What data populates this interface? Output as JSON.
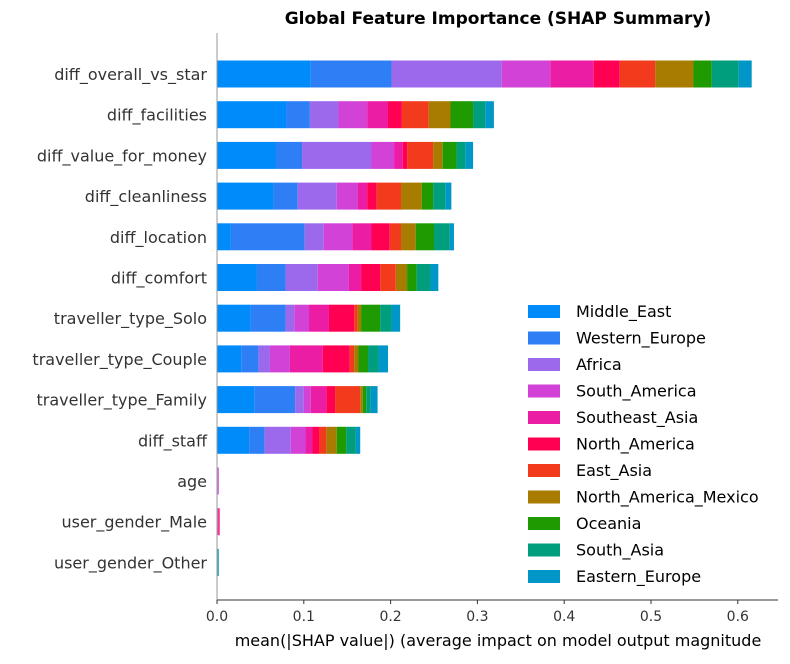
{
  "chart_data": {
    "type": "bar",
    "orientation": "horizontal",
    "stacked": true,
    "title": "Global Feature Importance (SHAP Summary)",
    "xlabel": "mean(|SHAP value|) (average impact on model output magnitude",
    "ylabel": "",
    "xlim": [
      0,
      0.645
    ],
    "xticks": [
      0.0,
      0.1,
      0.2,
      0.3,
      0.4,
      0.5,
      0.6
    ],
    "xtick_labels": [
      "0.0",
      "0.1",
      "0.2",
      "0.3",
      "0.4",
      "0.5",
      "0.6"
    ],
    "grid": false,
    "legend_position": "lower-right",
    "categories": [
      "diff_overall_vs_star",
      "diff_facilities",
      "diff_value_for_money",
      "diff_cleanliness",
      "diff_location",
      "diff_comfort",
      "traveller_type_Solo",
      "traveller_type_Couple",
      "traveller_type_Family",
      "diff_staff",
      "age",
      "user_gender_Male",
      "user_gender_Other"
    ],
    "series": [
      {
        "name": "Middle_East",
        "color": "#008bfb",
        "values": [
          0.108,
          0.08,
          0.068,
          0.065,
          0.016,
          0.046,
          0.039,
          0.028,
          0.043,
          0.037,
          0.0,
          0.0,
          0.0
        ]
      },
      {
        "name": "Western_Europe",
        "color": "#2e7ff5",
        "values": [
          0.093,
          0.027,
          0.03,
          0.028,
          0.085,
          0.033,
          0.04,
          0.02,
          0.047,
          0.018,
          0.0,
          0.0,
          0.0
        ]
      },
      {
        "name": "Africa",
        "color": "#9c68ec",
        "values": [
          0.127,
          0.033,
          0.08,
          0.045,
          0.022,
          0.037,
          0.01,
          0.013,
          0.01,
          0.03,
          0.001,
          0.0,
          0.0
        ]
      },
      {
        "name": "South_America",
        "color": "#d342d7",
        "values": [
          0.056,
          0.033,
          0.026,
          0.024,
          0.033,
          0.036,
          0.017,
          0.023,
          0.008,
          0.017,
          0.001,
          0.001,
          0.0
        ]
      },
      {
        "name": "Southeast_Asia",
        "color": "#ec1da5",
        "values": [
          0.05,
          0.024,
          0.01,
          0.011,
          0.022,
          0.014,
          0.023,
          0.038,
          0.018,
          0.008,
          0.0,
          0.001,
          0.0
        ]
      },
      {
        "name": "North_America",
        "color": "#ff0052",
        "values": [
          0.03,
          0.016,
          0.005,
          0.011,
          0.021,
          0.022,
          0.029,
          0.031,
          0.01,
          0.008,
          0.0,
          0.001,
          0.0
        ]
      },
      {
        "name": "East_Asia",
        "color": "#f23b1d",
        "values": [
          0.041,
          0.031,
          0.03,
          0.028,
          0.013,
          0.018,
          0.004,
          0.005,
          0.029,
          0.008,
          0.0,
          0.0,
          0.0
        ]
      },
      {
        "name": "North_America_Mexico",
        "color": "#a87c00",
        "values": [
          0.044,
          0.025,
          0.011,
          0.024,
          0.017,
          0.013,
          0.004,
          0.005,
          0.003,
          0.012,
          0.0,
          0.0,
          0.0
        ]
      },
      {
        "name": "Oceania",
        "color": "#1f9a00",
        "values": [
          0.021,
          0.026,
          0.016,
          0.013,
          0.021,
          0.011,
          0.022,
          0.011,
          0.004,
          0.011,
          0.0,
          0.0,
          0.0
        ]
      },
      {
        "name": "South_Asia",
        "color": "#009e7d",
        "values": [
          0.031,
          0.014,
          0.01,
          0.014,
          0.018,
          0.016,
          0.013,
          0.012,
          0.005,
          0.011,
          0.0,
          0.0,
          0.001
        ]
      },
      {
        "name": "Eastern_Europe",
        "color": "#0096c8",
        "values": [
          0.015,
          0.01,
          0.009,
          0.007,
          0.005,
          0.009,
          0.01,
          0.011,
          0.008,
          0.005,
          0.0,
          0.0,
          0.001
        ]
      }
    ]
  }
}
